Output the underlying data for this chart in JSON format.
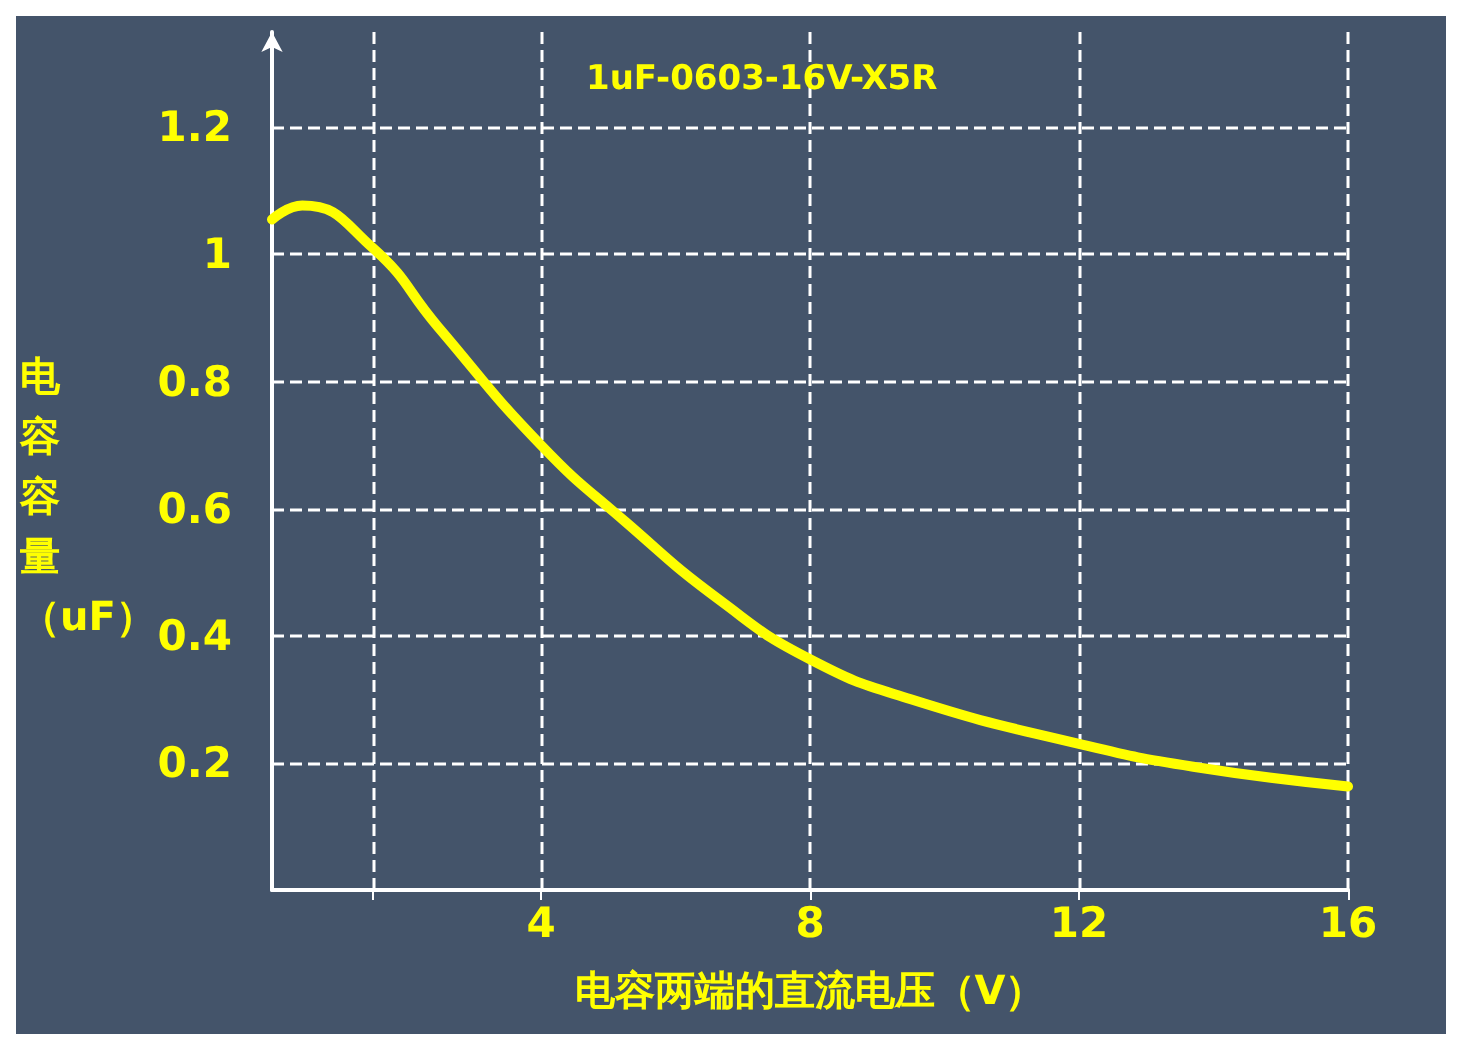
{
  "chart_data": {
    "type": "line",
    "title": "1uF-0603-16V-X5R",
    "xlabel": "电容两端的直流电压（V）",
    "ylabel": "电容容量（uF）",
    "series": [
      {
        "color": "#ffff00",
        "x": [
          0,
          0.45,
          1.5,
          2.47,
          4,
          5.27,
          6.67,
          8,
          9.5,
          12,
          13.7,
          16
        ],
        "values": [
          1.055,
          1.077,
          1.01,
          0.886,
          0.7,
          0.578,
          0.455,
          0.363,
          0.3,
          0.23,
          0.194,
          0.163
        ]
      }
    ],
    "xlim": [
      0,
      16
    ],
    "xticks": [
      {
        "value": 1.5,
        "label": null
      },
      4,
      8,
      12,
      16
    ],
    "ylim": [
      0,
      1.35
    ],
    "yticks": [
      0.2,
      0.4,
      0.6,
      0.8,
      1,
      1.2
    ],
    "grid": true,
    "marker": "none",
    "line_style": "solid"
  }
}
